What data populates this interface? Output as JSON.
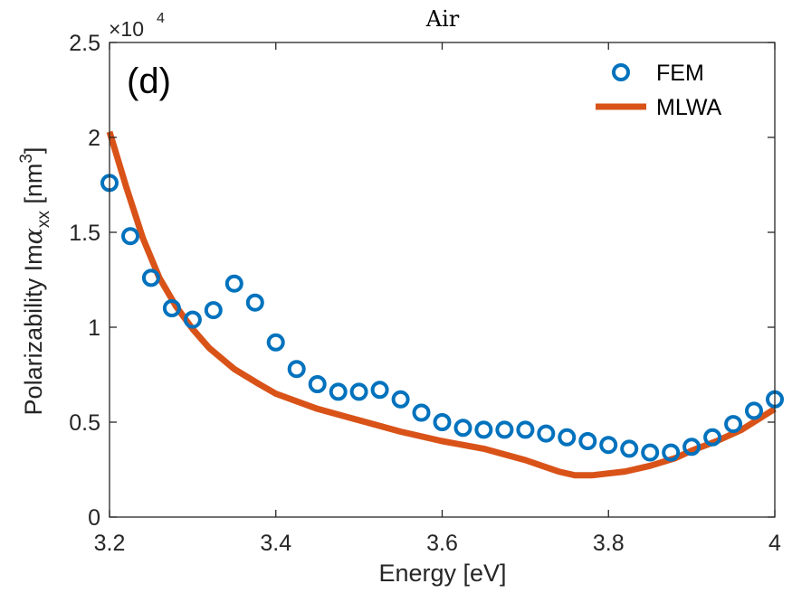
{
  "chart_data": {
    "type": "line",
    "title": "Air",
    "panel_label": "(d)",
    "xlabel": "Energy [eV]",
    "ylabel_main": "Polarizability Im",
    "ylabel_symbol": "α",
    "ylabel_sub": "xx",
    "ylabel_unit": " [nm",
    "ylabel_unit_sup": "3",
    "ylabel_close": "]",
    "y_multiplier_base": "×10",
    "y_multiplier_exp": "4",
    "xlim": [
      3.2,
      4.0
    ],
    "ylim": [
      0,
      2.5
    ],
    "x_ticks": [
      3.2,
      3.4,
      3.6,
      3.8,
      4.0
    ],
    "x_tick_labels": [
      "3.2",
      "3.4",
      "3.6",
      "3.8",
      "4"
    ],
    "y_ticks": [
      0,
      0.5,
      1,
      1.5,
      2,
      2.5
    ],
    "y_tick_labels": [
      "0",
      "0.5",
      "1",
      "1.5",
      "2",
      "2.5"
    ],
    "legend_position": "top-right",
    "series": [
      {
        "name": "FEM",
        "style": "markers",
        "color": "#0072BD",
        "x": [
          3.2,
          3.225,
          3.25,
          3.275,
          3.3,
          3.325,
          3.35,
          3.375,
          3.4,
          3.425,
          3.45,
          3.475,
          3.5,
          3.525,
          3.55,
          3.575,
          3.6,
          3.625,
          3.65,
          3.675,
          3.7,
          3.725,
          3.75,
          3.775,
          3.8,
          3.825,
          3.85,
          3.875,
          3.9,
          3.925,
          3.95,
          3.975,
          4.0
        ],
        "y": [
          1.76,
          1.48,
          1.26,
          1.1,
          1.04,
          1.09,
          1.23,
          1.13,
          0.92,
          0.78,
          0.7,
          0.66,
          0.66,
          0.67,
          0.62,
          0.55,
          0.5,
          0.47,
          0.46,
          0.46,
          0.46,
          0.44,
          0.42,
          0.4,
          0.38,
          0.36,
          0.34,
          0.34,
          0.37,
          0.42,
          0.49,
          0.56,
          0.62
        ]
      },
      {
        "name": "MLWA",
        "style": "line",
        "color": "#D95319",
        "x": [
          3.2,
          3.22,
          3.24,
          3.26,
          3.28,
          3.3,
          3.32,
          3.35,
          3.38,
          3.4,
          3.45,
          3.5,
          3.55,
          3.6,
          3.65,
          3.7,
          3.72,
          3.74,
          3.76,
          3.78,
          3.8,
          3.82,
          3.85,
          3.88,
          3.9,
          3.93,
          3.96,
          4.0
        ],
        "y": [
          2.03,
          1.74,
          1.47,
          1.26,
          1.11,
          0.99,
          0.89,
          0.78,
          0.7,
          0.65,
          0.57,
          0.51,
          0.45,
          0.4,
          0.36,
          0.3,
          0.27,
          0.24,
          0.22,
          0.22,
          0.23,
          0.24,
          0.27,
          0.31,
          0.35,
          0.4,
          0.46,
          0.57
        ]
      }
    ]
  }
}
